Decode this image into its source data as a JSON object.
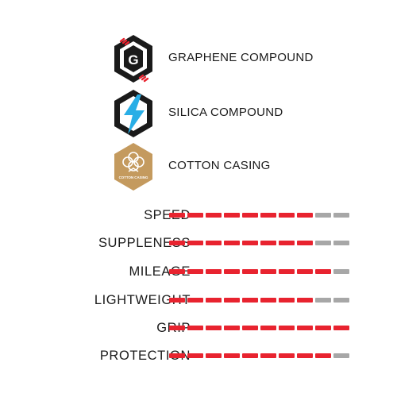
{
  "features": [
    {
      "icon": "graphene-g-hexagon-icon",
      "badge_letter": "G",
      "label": "GRAPHENE COMPOUND"
    },
    {
      "icon": "silica-lightning-hexagon-icon",
      "label": "SILICA COMPOUND"
    },
    {
      "icon": "cotton-flower-hexagon-icon",
      "badge_text": "COTTON CASING",
      "label": "COTTON CASING"
    }
  ],
  "ratings": {
    "max": 10,
    "rows": [
      {
        "label": "SPEED",
        "value": 8
      },
      {
        "label": "SUPPLENESS",
        "value": 8
      },
      {
        "label": "MILEAGE",
        "value": 9
      },
      {
        "label": "LIGHTWEIGHT",
        "value": 8
      },
      {
        "label": "GRIP",
        "value": 10
      },
      {
        "label": "PROTECTION",
        "value": 9
      }
    ]
  },
  "colors": {
    "filled": "#e8232f",
    "empty": "#a7a7a7",
    "graphene_accent": "#e8232f",
    "silica_accent": "#29aee6",
    "cotton_badge": "#c49a5e",
    "text": "#1a1a1a"
  }
}
